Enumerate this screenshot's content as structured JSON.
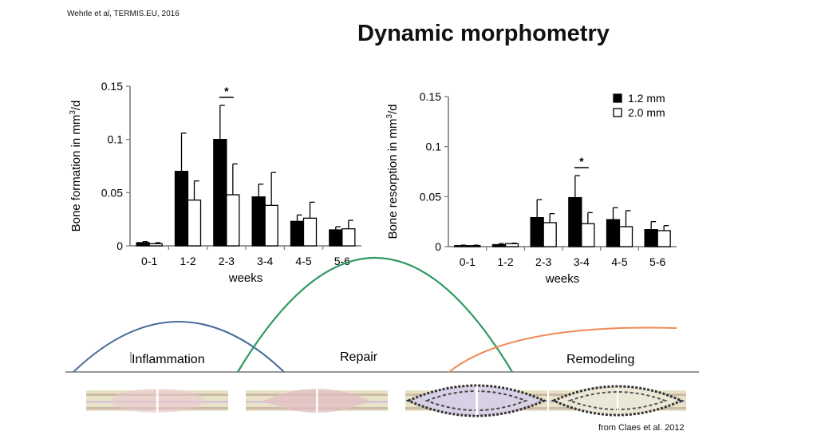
{
  "header": {
    "citation": "Wehrle et al, TERMIS.EU, 2016",
    "title": "Dynamic morphometry"
  },
  "source": "from Claes et al. 2012",
  "colors": {
    "filled": "#000000",
    "open": "#ffffff",
    "inflammation": "#4a6a9a",
    "repair": "#2e9a62",
    "remodeling": "#ef8a55"
  },
  "chart_data": [
    {
      "type": "bar",
      "categories": [
        "0-1",
        "1-2",
        "2-3",
        "3-4",
        "4-5",
        "5-6"
      ],
      "series": [
        {
          "name": "1.2 mm",
          "values": [
            0.003,
            0.07,
            0.1,
            0.046,
            0.023,
            0.015
          ],
          "errors": [
            0.001,
            0.036,
            0.032,
            0.012,
            0.006,
            0.003
          ]
        },
        {
          "name": "2.0 mm",
          "values": [
            0.002,
            0.043,
            0.048,
            0.038,
            0.026,
            0.016
          ],
          "errors": [
            0.001,
            0.018,
            0.029,
            0.031,
            0.015,
            0.008
          ]
        }
      ],
      "xlabel": "weeks",
      "ylabel_main": "Bone formation in mm",
      "ylabel_sup": "3",
      "ylabel_end": "/d",
      "ylim": [
        0,
        0.15
      ],
      "yticks": [
        0,
        0.05,
        0.1,
        0.15
      ],
      "ytick_labels": [
        "0",
        "0.05",
        "0.1",
        "0.15"
      ],
      "significance": {
        "category": "2-3",
        "label": "*"
      }
    },
    {
      "type": "bar",
      "categories": [
        "0-1",
        "1-2",
        "2-3",
        "3-4",
        "4-5",
        "5-6"
      ],
      "series": [
        {
          "name": "1.2 mm",
          "values": [
            0.001,
            0.002,
            0.029,
            0.049,
            0.027,
            0.017
          ],
          "errors": [
            0.0005,
            0.001,
            0.018,
            0.022,
            0.012,
            0.008
          ]
        },
        {
          "name": "2.0 mm",
          "values": [
            0.001,
            0.003,
            0.024,
            0.023,
            0.02,
            0.016
          ],
          "errors": [
            0.0005,
            0.0005,
            0.009,
            0.011,
            0.016,
            0.005
          ]
        }
      ],
      "xlabel": "weeks",
      "ylabel_main": "Bone resorption in mm",
      "ylabel_sup": "3",
      "ylabel_end": "/d",
      "ylim": [
        0,
        0.15
      ],
      "yticks": [
        0,
        0.05,
        0.1,
        0.15
      ],
      "ytick_labels": [
        "0",
        "0.05",
        "0.1",
        "0.15"
      ],
      "legend": {
        "position": "top-right"
      },
      "significance": {
        "category": "3-4",
        "label": "*"
      }
    }
  ],
  "phases": [
    "Inflammation",
    "Repair",
    "Remodeling"
  ]
}
